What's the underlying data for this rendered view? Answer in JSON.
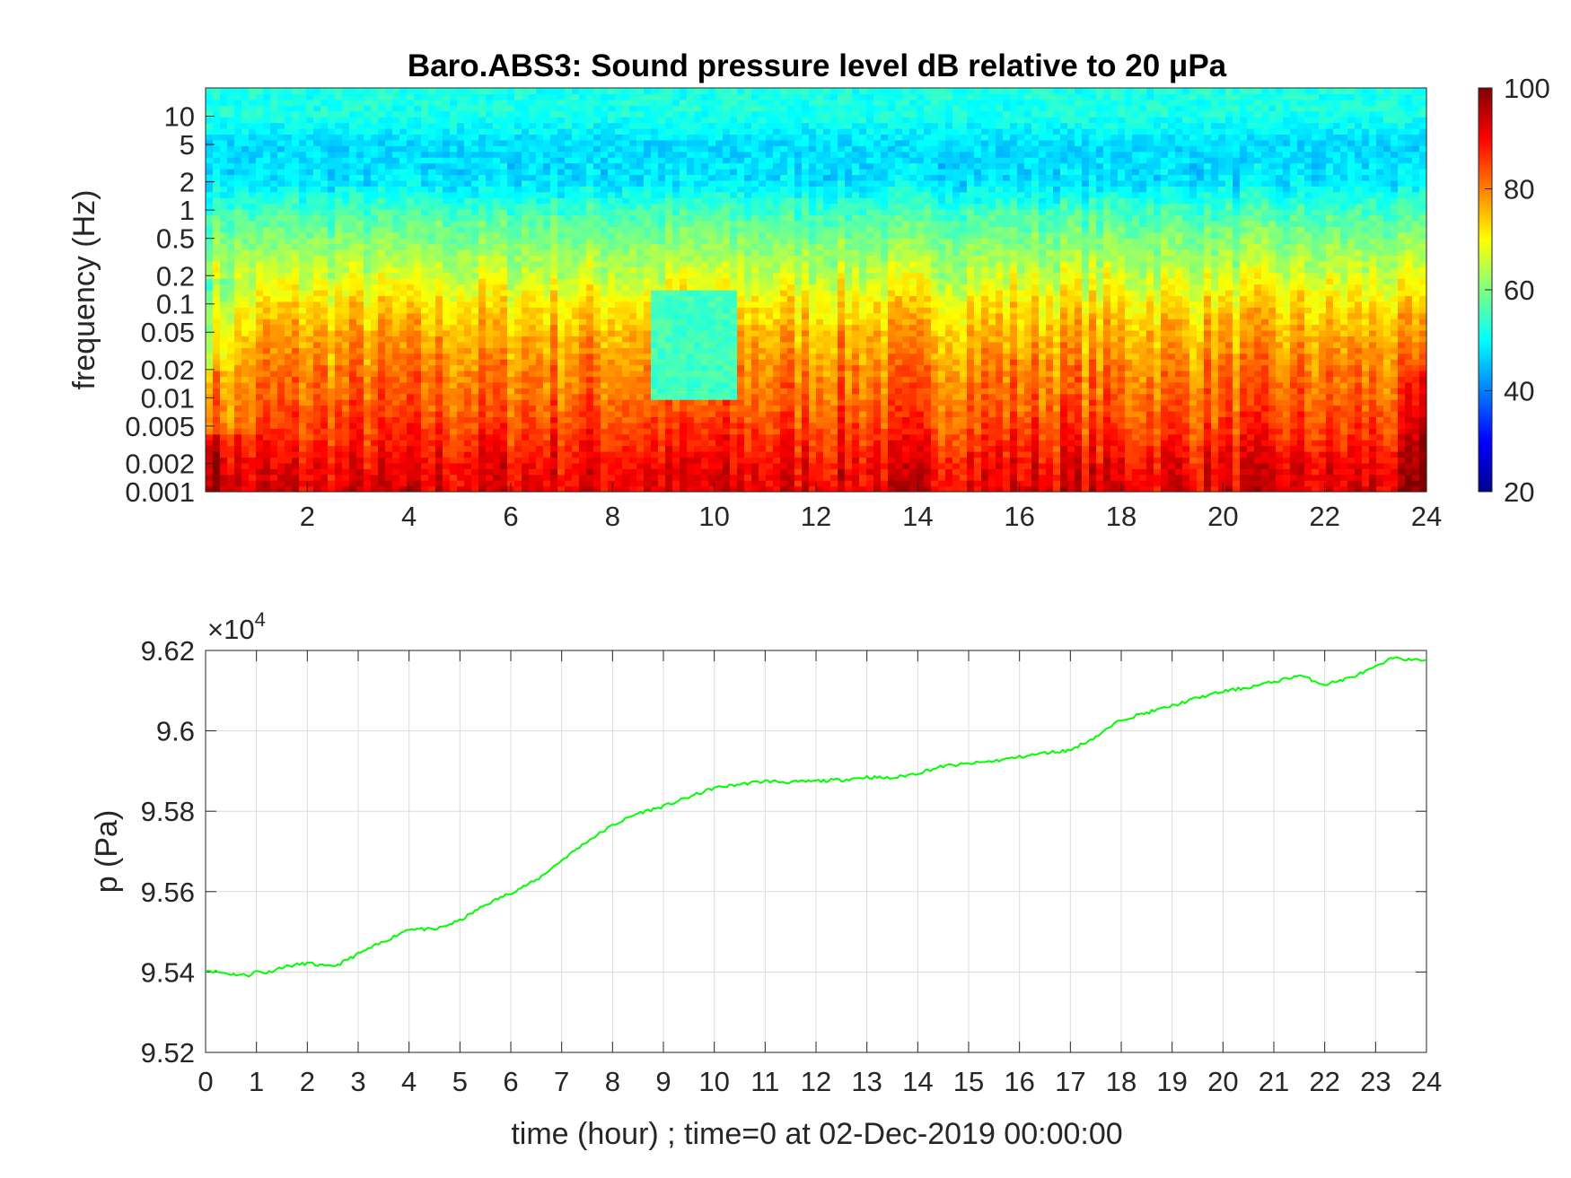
{
  "chart_data": [
    {
      "type": "heatmap",
      "title": "Baro.ABS3: Sound pressure level dB relative to 20 μPa",
      "ylabel": "frequency (Hz)",
      "xlabel": "",
      "xlim": [
        0,
        24
      ],
      "x_ticks": [
        2,
        4,
        6,
        8,
        10,
        12,
        14,
        16,
        18,
        20,
        22,
        24
      ],
      "y_scale": "log",
      "ylim": [
        0.001,
        20
      ],
      "y_ticks": [
        0.001,
        0.002,
        0.005,
        0.01,
        0.02,
        0.05,
        0.1,
        0.2,
        0.5,
        1,
        2,
        5,
        10
      ],
      "y_tick_labels": [
        "0.001",
        "0.002",
        "0.005",
        "0.01",
        "0.02",
        "0.05",
        "0.1",
        "0.2",
        "0.5",
        "1",
        "2",
        "5",
        "10"
      ],
      "colorbar": {
        "range": [
          20,
          100
        ],
        "ticks": [
          20,
          40,
          60,
          80,
          100
        ],
        "colormap": "jet"
      },
      "level_profile": {
        "frequency_hz": [
          0.001,
          0.002,
          0.005,
          0.01,
          0.02,
          0.05,
          0.1,
          0.2,
          0.5,
          1,
          2,
          5,
          10,
          20
        ],
        "level_db": [
          92,
          90,
          85,
          82,
          80,
          76,
          72,
          66,
          60,
          55,
          48,
          47,
          52,
          52
        ]
      },
      "quiet_period": {
        "time_hours": [
          8.7,
          10.4
        ],
        "frequency_hz": [
          0.01,
          0.15
        ],
        "level_db": 55
      },
      "grid": false
    },
    {
      "type": "line",
      "xlabel": "time (hour) ; time=0 at 02-Dec-2019 00:00:00",
      "ylabel": "p (Pa)",
      "y_exponent_label": "×10",
      "y_exponent_power": "4",
      "xlim": [
        0,
        24
      ],
      "ylim": [
        9.52,
        9.62
      ],
      "x_ticks": [
        0,
        1,
        2,
        3,
        4,
        5,
        6,
        7,
        8,
        9,
        10,
        11,
        12,
        13,
        14,
        15,
        16,
        17,
        18,
        19,
        20,
        21,
        22,
        23,
        24
      ],
      "y_ticks": [
        9.52,
        9.54,
        9.56,
        9.58,
        9.6,
        9.62
      ],
      "y_tick_labels": [
        "9.52",
        "9.54",
        "9.56",
        "9.58",
        "9.6",
        "9.62"
      ],
      "grid": true,
      "series": [
        {
          "color": "#00ff00",
          "x": [
            0,
            0.5,
            0.85,
            1,
            1.2,
            1.5,
            2,
            2.4,
            2.6,
            3,
            3.5,
            4,
            4.5,
            5,
            5.5,
            6,
            6.5,
            7,
            7.5,
            8,
            8.5,
            9,
            9.5,
            10,
            10.5,
            11,
            11.5,
            12,
            12.5,
            13,
            13.5,
            14,
            14.5,
            15,
            15.5,
            16,
            16.5,
            17,
            17.5,
            18,
            18.5,
            19,
            19.5,
            20,
            20.5,
            21,
            21.5,
            22,
            22.5,
            23,
            23.4,
            23.7,
            24
          ],
          "y": [
            9.5405,
            9.5395,
            9.5392,
            9.5402,
            9.5398,
            9.5412,
            9.5422,
            9.5413,
            9.5418,
            9.5445,
            9.5475,
            9.5508,
            9.5505,
            9.5528,
            9.5567,
            9.5597,
            9.5628,
            9.5678,
            9.5725,
            9.5765,
            9.5795,
            9.5812,
            9.5835,
            9.5858,
            9.5867,
            9.5875,
            9.5872,
            9.5875,
            9.5878,
            9.5885,
            9.5882,
            9.5895,
            9.5912,
            9.5918,
            9.5925,
            9.5935,
            9.5945,
            9.5952,
            9.5985,
            9.6028,
            9.6045,
            9.6062,
            9.6082,
            9.6098,
            9.6108,
            9.6122,
            9.6138,
            9.6115,
            9.6132,
            9.6158,
            9.6185,
            9.6175,
            9.6178
          ]
        }
      ]
    }
  ]
}
